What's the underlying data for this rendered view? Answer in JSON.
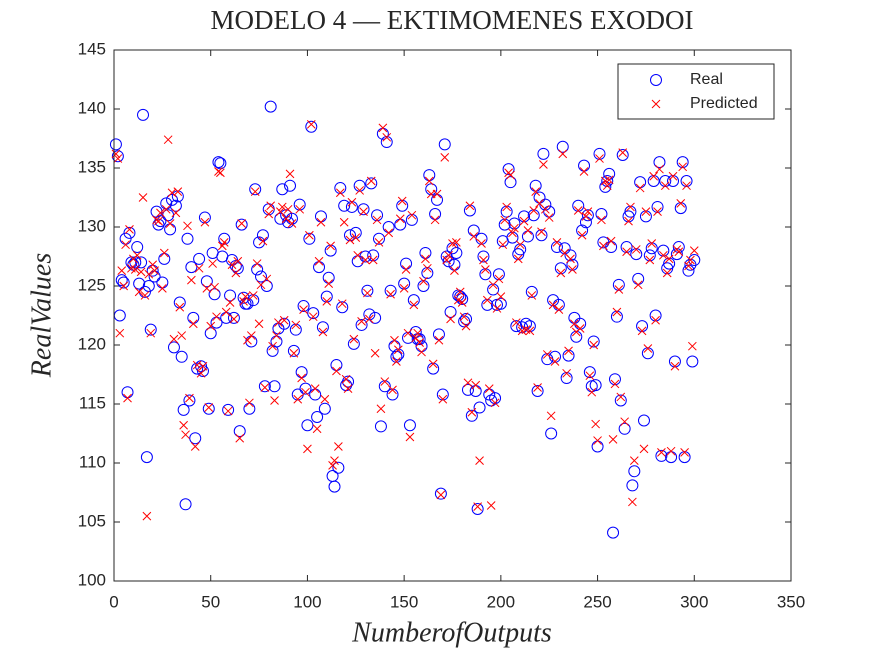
{
  "chart_data": {
    "type": "scatter",
    "title": "MODELO 4 — EKTIMOMENES EXODOI",
    "x_label": "NumberofOutputs",
    "y_label": "RealValues",
    "xlim": [
      0,
      350
    ],
    "xticks": [
      0,
      50,
      100,
      150,
      200,
      250,
      300,
      350
    ],
    "ylim": [
      100,
      145
    ],
    "yticks": [
      100,
      105,
      110,
      115,
      120,
      125,
      130,
      135,
      140,
      145
    ],
    "legend": "upper-right",
    "x": [
      1,
      2,
      3,
      4,
      5,
      6,
      7,
      8,
      9,
      10,
      11,
      12,
      13,
      14,
      15,
      16,
      17,
      18,
      19,
      20,
      21,
      22,
      23,
      24,
      25,
      26,
      27,
      28,
      29,
      30,
      31,
      32,
      33,
      34,
      35,
      36,
      37,
      38,
      39,
      40,
      41,
      42,
      43,
      44,
      45,
      46,
      47,
      48,
      49,
      50,
      51,
      52,
      53,
      54,
      55,
      56,
      57,
      58,
      59,
      60,
      61,
      62,
      63,
      64,
      65,
      66,
      67,
      68,
      69,
      70,
      71,
      72,
      73,
      74,
      75,
      76,
      77,
      78,
      79,
      80,
      81,
      82,
      83,
      84,
      85,
      86,
      87,
      88,
      89,
      90,
      91,
      92,
      93,
      94,
      95,
      96,
      97,
      98,
      99,
      100,
      101,
      102,
      103,
      104,
      105,
      106,
      107,
      108,
      109,
      110,
      111,
      112,
      113,
      114,
      115,
      116,
      117,
      118,
      119,
      120,
      121,
      122,
      123,
      124,
      125,
      126,
      127,
      128,
      129,
      130,
      131,
      132,
      133,
      134,
      135,
      136,
      137,
      138,
      139,
      140,
      141,
      142,
      143,
      144,
      145,
      146,
      147,
      148,
      149,
      150,
      151,
      152,
      153,
      154,
      155,
      156,
      157,
      158,
      159,
      160,
      161,
      162,
      163,
      164,
      165,
      166,
      167,
      168,
      169,
      170,
      171,
      172,
      173,
      174,
      175,
      176,
      177,
      178,
      179,
      180,
      181,
      182,
      183,
      184,
      185,
      186,
      187,
      188,
      189,
      190,
      191,
      192,
      193,
      194,
      195,
      196,
      197,
      198,
      199,
      200,
      201,
      202,
      203,
      204,
      205,
      206,
      207,
      208,
      209,
      210,
      211,
      212,
      213,
      214,
      215,
      216,
      217,
      218,
      219,
      220,
      221,
      222,
      223,
      224,
      225,
      226,
      227,
      228,
      229,
      230,
      231,
      232,
      233,
      234,
      235,
      236,
      237,
      238,
      239,
      240,
      241,
      242,
      243,
      244,
      245,
      246,
      247,
      248,
      249,
      250,
      251,
      252,
      253,
      254,
      255,
      256,
      257,
      258,
      259,
      260,
      261,
      262,
      263,
      264,
      265,
      266,
      267,
      268,
      269,
      270,
      271,
      272,
      273,
      274,
      275,
      276,
      277,
      278,
      279,
      280,
      281,
      282,
      283,
      284,
      285,
      286,
      287,
      288,
      289,
      290,
      291,
      292,
      293,
      294,
      295,
      296,
      297,
      298,
      299,
      300
    ],
    "series": [
      {
        "name": "Real",
        "color": "#0000ff",
        "marker": "circle",
        "values": [
          137,
          136,
          122.5,
          125.5,
          125.3,
          129,
          116,
          129.5,
          127,
          126.8,
          127,
          128.3,
          125.2,
          127,
          139.5,
          124.5,
          110.5,
          125,
          121.3,
          126.3,
          125.8,
          131.3,
          130.2,
          130.5,
          125.3,
          127.3,
          132,
          131,
          129.8,
          132.3,
          119.8,
          131.8,
          132.6,
          123.6,
          119,
          114.5,
          106.5,
          129,
          115.3,
          126.6,
          122.3,
          112.1,
          118,
          127.3,
          118.2,
          117.8,
          130.8,
          125.4,
          114.6,
          121,
          127.8,
          124.3,
          121.9,
          135.5,
          135.4,
          127.5,
          129,
          122.3,
          114.5,
          124.2,
          127.2,
          122.3,
          126.7,
          126.5,
          112.7,
          130.2,
          124,
          123.5,
          123.5,
          114.6,
          120.3,
          123.8,
          133.2,
          126.4,
          128.7,
          125.8,
          129.3,
          116.5,
          125,
          131.5,
          140.2,
          119.5,
          116.5,
          120.3,
          121.4,
          130.7,
          133.2,
          121.8,
          131,
          130.4,
          133.5,
          130.7,
          119.5,
          121.3,
          115.8,
          131.9,
          117.7,
          123.3,
          116.3,
          113.2,
          129,
          138.5,
          122.7,
          115.8,
          113.9,
          126.6,
          130.9,
          121.5,
          114.6,
          124.1,
          125.7,
          128,
          108.9,
          108,
          118.3,
          109.6,
          133.3,
          123.2,
          131.8,
          116.6,
          116.9,
          129.3,
          131.7,
          120.1,
          129.5,
          127.1,
          133.5,
          121.7,
          131.5,
          127.5,
          124.6,
          122.6,
          133.7,
          127.6,
          122.3,
          131,
          129,
          113.1,
          137.9,
          116.5,
          137.2,
          130,
          124.6,
          115.8,
          119.9,
          119,
          119.2,
          130.2,
          131.8,
          125.2,
          126.9,
          120.6,
          113.2,
          130.6,
          123.8,
          121.1,
          120.5,
          120.5,
          119.9,
          125,
          127.8,
          126.1,
          134.4,
          133.2,
          118,
          131.1,
          132.3,
          120.9,
          107.4,
          115.8,
          137,
          127.5,
          127.1,
          122.8,
          128.2,
          126.8,
          127.8,
          124.2,
          124.1,
          123.9,
          122,
          122.2,
          116.2,
          131.4,
          114,
          129.7,
          116.1,
          106.1,
          114.7,
          129,
          127.5,
          126,
          123.4,
          115.8,
          115.3,
          124.7,
          115.5,
          123.4,
          126,
          123.5,
          128.8,
          130.2,
          131.3,
          134.9,
          133.8,
          129.1,
          130.3,
          121.6,
          127.7,
          128.1,
          121.5,
          130.9,
          121.8,
          129.2,
          121.6,
          124.5,
          131,
          133.5,
          116.1,
          132.5,
          129.3,
          136.2,
          131.9,
          118.8,
          131.3,
          112.5,
          123.8,
          119,
          128.3,
          123.4,
          126.5,
          136.8,
          128.2,
          117.2,
          119.1,
          127.6,
          126.8,
          122.3,
          120.7,
          131.8,
          121.8,
          129.7,
          135.2,
          130.4,
          131,
          117.7,
          116.5,
          120.3,
          116.6,
          111.4,
          136.2,
          131.1,
          128.7,
          133.4,
          133.9,
          134.5,
          128.3,
          104.1,
          117.1,
          122.4,
          125.1,
          115.3,
          136.1,
          112.9,
          128.3,
          130.9,
          131.3,
          108.1,
          109.3,
          127.7,
          125.6,
          133.8,
          121.6,
          113.6,
          130.9,
          119.3,
          127.6,
          128.2,
          133.9,
          122.5,
          131.7,
          135.5,
          110.6,
          128,
          133.9,
          126.5,
          126.9,
          110.5,
          133.9,
          118.6,
          127.7,
          128.3,
          131.6,
          135.5,
          110.5,
          133.9,
          126.3,
          126.8,
          118.6,
          127.2
        ]
      },
      {
        "name": "Predicted",
        "color": "#ff0000",
        "marker": "x",
        "values": [
          136.2,
          135.8,
          121,
          126.3,
          125,
          128.5,
          115.5,
          129.8,
          126.5,
          127.3,
          126.4,
          127.6,
          124.5,
          126.2,
          132.5,
          124.2,
          105.5,
          126,
          121,
          126.8,
          126.3,
          130.6,
          130.5,
          131.2,
          124.8,
          127.8,
          131.5,
          137.4,
          130.3,
          132.9,
          120.5,
          131.2,
          133,
          123.2,
          120.8,
          113.2,
          112.4,
          130.1,
          115.5,
          125.5,
          121.8,
          111.4,
          118.3,
          126.5,
          117.6,
          118.2,
          130.4,
          124.8,
          114.7,
          121.6,
          126.9,
          124.9,
          122.4,
          134.7,
          134.6,
          128.4,
          128.7,
          122.8,
          114.4,
          123.6,
          126.8,
          122.2,
          126.1,
          127.1,
          112.1,
          130.3,
          123.7,
          124.1,
          120.4,
          115.1,
          120.8,
          124.2,
          133,
          126.9,
          121.8,
          125.1,
          128.8,
          116.4,
          125.6,
          131.1,
          131.8,
          119.9,
          115.3,
          120.8,
          121.9,
          131.3,
          131.7,
          122.1,
          130.7,
          131.5,
          134.5,
          130.3,
          119.3,
          121.7,
          115.4,
          131.5,
          117.2,
          123,
          116,
          111.2,
          129.3,
          138.7,
          122.4,
          116.3,
          112.9,
          127.1,
          130.4,
          121.1,
          115.4,
          123.7,
          125.2,
          128.4,
          109.8,
          110.2,
          117.8,
          111.4,
          132.9,
          123.5,
          130.4,
          117.1,
          116.3,
          128.9,
          132.1,
          120.5,
          129.1,
          127.6,
          133.1,
          122,
          131.3,
          127.2,
          124.4,
          122.2,
          133.9,
          127.2,
          119.3,
          130.6,
          128.7,
          114.6,
          138.4,
          116.9,
          137.6,
          129.5,
          124.3,
          116.2,
          120.4,
          118.6,
          119.6,
          130.7,
          132.2,
          124.8,
          126.4,
          121,
          112.2,
          131,
          123.4,
          120.6,
          121,
          120.2,
          119.4,
          125.4,
          127.3,
          126.5,
          133.9,
          132.8,
          118.4,
          130.6,
          132.8,
          120.4,
          107.3,
          115.4,
          135.9,
          127.2,
          127.6,
          122.2,
          128.6,
          126.3,
          128.7,
          123.8,
          124.5,
          123.6,
          122.4,
          121.6,
          116.8,
          131.8,
          114.3,
          129.2,
          116.6,
          106.3,
          110.2,
          128.6,
          127.2,
          126.4,
          123.8,
          116.3,
          106.4,
          125.1,
          115.1,
          123.1,
          125.6,
          124.1,
          128.5,
          130.6,
          131.7,
          134.6,
          134.4,
          129.5,
          129.9,
          121.9,
          127.3,
          128.5,
          121.2,
          130.5,
          121.3,
          129.7,
          121.2,
          124.2,
          131.4,
          133,
          116.4,
          132,
          129.6,
          135.3,
          131.5,
          119.2,
          130.8,
          114,
          123.4,
          118.6,
          128.7,
          123,
          126.1,
          136.2,
          127.8,
          117.6,
          119.5,
          127.3,
          126.4,
          121.8,
          121.1,
          131.4,
          121.4,
          129.3,
          134.7,
          130.9,
          131.3,
          117.4,
          116,
          120,
          113.3,
          111.9,
          135.8,
          130.6,
          128.4,
          133.9,
          133.5,
          134,
          128.8,
          112,
          116.7,
          122.8,
          124.7,
          115.6,
          136.3,
          113.5,
          127.9,
          130.5,
          131.7,
          106.7,
          110.2,
          128.1,
          125.1,
          133.3,
          121.2,
          111.2,
          131.3,
          119.7,
          127.2,
          128.6,
          134.3,
          122.1,
          131.3,
          134.9,
          110.9,
          127.6,
          133.5,
          126.1,
          127.3,
          111,
          134.3,
          118.2,
          128.1,
          127.9,
          132,
          135.1,
          110.9,
          133.5,
          126.7,
          127.2,
          119.9,
          128
        ]
      }
    ]
  }
}
